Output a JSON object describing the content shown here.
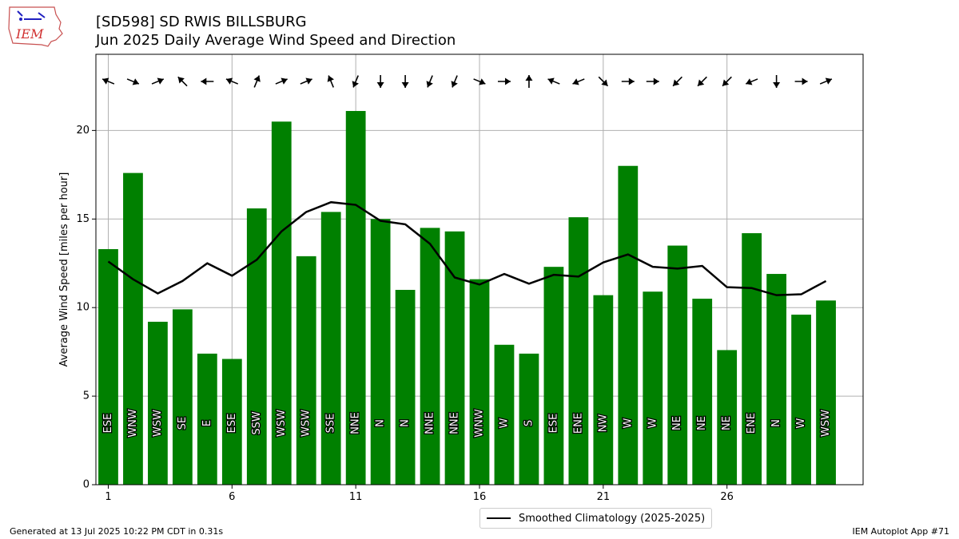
{
  "header": {
    "logo_text": "IEM",
    "title_line1": "[SD598] SD RWIS BILLSBURG",
    "title_line2": "Jun 2025 Daily Average Wind Speed and Direction"
  },
  "footer": {
    "left": "Generated at 13 Jul 2025 10:22 PM CDT in 0.31s",
    "right": "IEM Autoplot App #71"
  },
  "legend": {
    "label": "Smoothed Climatology (2025-2025)"
  },
  "colors": {
    "bar": "#008000",
    "line": "#000000",
    "grid": "#b0b0b0"
  },
  "chart_data": {
    "type": "bar",
    "ylabel": "Average Wind Speed [miles per hour]",
    "ylim": [
      0,
      24.3
    ],
    "xlim": [
      0.5,
      31.5
    ],
    "xticks": [
      1,
      6,
      11,
      16,
      21,
      26
    ],
    "yticks": [
      0,
      5,
      10,
      15,
      20
    ],
    "grid": true,
    "legend_position": "bottom-center",
    "days": [
      1,
      2,
      3,
      4,
      5,
      6,
      7,
      8,
      9,
      10,
      11,
      12,
      13,
      14,
      15,
      16,
      17,
      18,
      19,
      20,
      21,
      22,
      23,
      24,
      25,
      26,
      27,
      28,
      29,
      30
    ],
    "series": [
      {
        "name": "Average Wind Speed",
        "type": "bar",
        "values": [
          13.3,
          17.6,
          9.2,
          9.9,
          7.4,
          7.1,
          15.6,
          20.5,
          12.9,
          15.4,
          21.1,
          15.0,
          11.0,
          14.5,
          14.3,
          11.6,
          7.9,
          7.4,
          12.3,
          15.1,
          10.7,
          18.0,
          10.9,
          13.5,
          10.5,
          7.6,
          14.2,
          11.9,
          9.6,
          10.4
        ],
        "directions": [
          "ESE",
          "WNW",
          "WSW",
          "SE",
          "E",
          "ESE",
          "SSW",
          "WSW",
          "WSW",
          "SSE",
          "NNE",
          "N",
          "N",
          "NNE",
          "NNE",
          "WNW",
          "W",
          "S",
          "ESE",
          "ENE",
          "NW",
          "W",
          "W",
          "NE",
          "NE",
          "NE",
          "ENE",
          "N",
          "W",
          "WSW"
        ],
        "direction_degrees": [
          112.5,
          292.5,
          247.5,
          135,
          90,
          112.5,
          202.5,
          247.5,
          247.5,
          157.5,
          22.5,
          0,
          0,
          22.5,
          22.5,
          292.5,
          270,
          180,
          112.5,
          67.5,
          315,
          270,
          270,
          45,
          45,
          45,
          67.5,
          0,
          270,
          247.5
        ]
      },
      {
        "name": "Smoothed Climatology (2025-2025)",
        "type": "line",
        "values": [
          12.6,
          11.6,
          10.8,
          11.5,
          12.5,
          11.8,
          12.7,
          14.3,
          15.4,
          15.95,
          15.8,
          14.9,
          14.7,
          13.6,
          11.7,
          11.3,
          11.9,
          11.35,
          11.85,
          11.75,
          12.55,
          13.0,
          12.3,
          12.2,
          12.35,
          11.15,
          11.1,
          10.7,
          10.75,
          11.5
        ]
      }
    ]
  }
}
